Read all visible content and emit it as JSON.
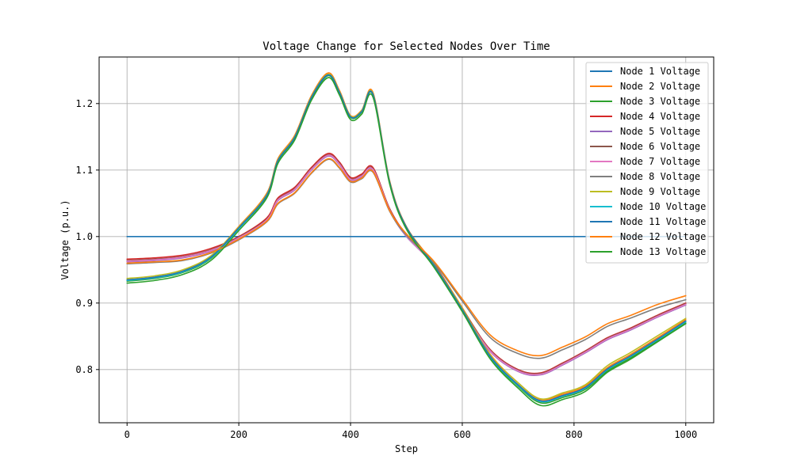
{
  "chart_data": {
    "type": "line",
    "title": "Voltage Change for Selected Nodes Over Time",
    "xlabel": "Step",
    "ylabel": "Voltage (p.u.)",
    "xlim": [
      -50,
      1050
    ],
    "ylim": [
      0.72,
      1.27
    ],
    "xticks": [
      0,
      200,
      400,
      600,
      800,
      1000
    ],
    "yticks": [
      0.8,
      0.9,
      1.0,
      1.1,
      1.2
    ],
    "grid": true,
    "legend_position": "upper right",
    "x": [
      0,
      50,
      100,
      150,
      200,
      250,
      270,
      300,
      330,
      360,
      380,
      400,
      420,
      440,
      470,
      500,
      550,
      600,
      650,
      700,
      740,
      780,
      820,
      860,
      900,
      950,
      1000
    ],
    "series": [
      {
        "name": "Node 1 Voltage",
        "color": "#1f77b4",
        "values": [
          1.0,
          1.0,
          1.0,
          1.0,
          1.0,
          1.0,
          1.0,
          1.0,
          1.0,
          1.0,
          1.0,
          1.0,
          1.0,
          1.0,
          1.0,
          1.0,
          1.0,
          1.0,
          1.0,
          1.0,
          1.0,
          1.0,
          1.0,
          1.0,
          1.0,
          1.0,
          1.0
        ]
      },
      {
        "name": "Node 2 Voltage",
        "color": "#ff7f0e",
        "values": [
          0.935,
          0.939,
          0.948,
          0.97,
          1.015,
          1.065,
          1.117,
          1.152,
          1.212,
          1.246,
          1.22,
          1.182,
          1.19,
          1.217,
          1.084,
          1.015,
          0.958,
          0.893,
          0.823,
          0.78,
          0.755,
          0.763,
          0.775,
          0.803,
          0.822,
          0.848,
          0.875
        ]
      },
      {
        "name": "Node 3 Voltage",
        "color": "#2ca02c",
        "values": [
          0.933,
          0.937,
          0.946,
          0.967,
          1.012,
          1.061,
          1.113,
          1.148,
          1.208,
          1.242,
          1.216,
          1.179,
          1.187,
          1.213,
          1.081,
          1.013,
          0.955,
          0.889,
          0.818,
          0.775,
          0.75,
          0.758,
          0.77,
          0.798,
          0.817,
          0.843,
          0.87
        ]
      },
      {
        "name": "Node 4 Voltage",
        "color": "#d62728",
        "values": [
          0.966,
          0.968,
          0.972,
          0.982,
          1.0,
          1.028,
          1.058,
          1.074,
          1.104,
          1.125,
          1.112,
          1.089,
          1.094,
          1.104,
          1.042,
          1.003,
          0.958,
          0.892,
          0.83,
          0.8,
          0.795,
          0.81,
          0.828,
          0.848,
          0.862,
          0.882,
          0.9
        ]
      },
      {
        "name": "Node 5 Voltage",
        "color": "#9467bd",
        "values": [
          0.962,
          0.964,
          0.968,
          0.978,
          0.997,
          1.024,
          1.054,
          1.07,
          1.1,
          1.121,
          1.108,
          1.085,
          1.09,
          1.1,
          1.039,
          1.0,
          0.956,
          0.889,
          0.827,
          0.797,
          0.792,
          0.807,
          0.825,
          0.845,
          0.859,
          0.879,
          0.897
        ]
      },
      {
        "name": "Node 6 Voltage",
        "color": "#8c564b",
        "values": [
          0.964,
          0.966,
          0.97,
          0.98,
          0.999,
          1.026,
          1.056,
          1.072,
          1.102,
          1.123,
          1.11,
          1.087,
          1.092,
          1.102,
          1.041,
          1.002,
          0.957,
          0.891,
          0.829,
          0.799,
          0.794,
          0.809,
          0.827,
          0.847,
          0.861,
          0.881,
          0.899
        ]
      },
      {
        "name": "Node 7 Voltage",
        "color": "#e377c2",
        "values": [
          0.963,
          0.965,
          0.969,
          0.979,
          0.998,
          1.025,
          1.055,
          1.071,
          1.101,
          1.122,
          1.109,
          1.086,
          1.091,
          1.101,
          1.04,
          1.001,
          0.956,
          0.89,
          0.828,
          0.798,
          0.793,
          0.808,
          0.826,
          0.846,
          0.86,
          0.88,
          0.898
        ]
      },
      {
        "name": "Node 8 Voltage",
        "color": "#7f7f7f",
        "values": [
          0.959,
          0.961,
          0.964,
          0.975,
          0.995,
          1.022,
          1.049,
          1.065,
          1.095,
          1.116,
          1.103,
          1.082,
          1.087,
          1.097,
          1.038,
          1.002,
          0.96,
          0.903,
          0.848,
          0.824,
          0.817,
          0.83,
          0.845,
          0.865,
          0.877,
          0.893,
          0.905
        ]
      },
      {
        "name": "Node 9 Voltage",
        "color": "#bcbd22",
        "values": [
          0.937,
          0.941,
          0.95,
          0.971,
          1.014,
          1.063,
          1.115,
          1.15,
          1.21,
          1.244,
          1.218,
          1.181,
          1.189,
          1.215,
          1.082,
          1.014,
          0.957,
          0.892,
          0.822,
          0.78,
          0.756,
          0.765,
          0.777,
          0.806,
          0.825,
          0.851,
          0.877
        ]
      },
      {
        "name": "Node 10 Voltage",
        "color": "#17becf",
        "values": [
          0.934,
          0.938,
          0.947,
          0.968,
          1.012,
          1.062,
          1.114,
          1.149,
          1.209,
          1.243,
          1.217,
          1.18,
          1.188,
          1.214,
          1.081,
          1.013,
          0.955,
          0.889,
          0.819,
          0.776,
          0.752,
          0.76,
          0.772,
          0.8,
          0.819,
          0.845,
          0.872
        ]
      },
      {
        "name": "Node 11 Voltage",
        "color": "#1f77b4",
        "values": [
          0.935,
          0.939,
          0.948,
          0.969,
          1.013,
          1.062,
          1.114,
          1.149,
          1.209,
          1.243,
          1.217,
          1.18,
          1.188,
          1.214,
          1.082,
          1.014,
          0.956,
          0.89,
          0.82,
          0.777,
          0.753,
          0.761,
          0.773,
          0.801,
          0.82,
          0.846,
          0.873
        ]
      },
      {
        "name": "Node 12 Voltage",
        "color": "#ff7f0e",
        "values": [
          0.96,
          0.962,
          0.965,
          0.976,
          0.996,
          1.023,
          1.05,
          1.066,
          1.096,
          1.117,
          1.104,
          1.083,
          1.088,
          1.098,
          1.039,
          1.004,
          0.962,
          0.906,
          0.852,
          0.828,
          0.821,
          0.834,
          0.849,
          0.869,
          0.881,
          0.898,
          0.911
        ]
      },
      {
        "name": "Node 13 Voltage",
        "color": "#2ca02c",
        "values": [
          0.93,
          0.934,
          0.943,
          0.964,
          1.009,
          1.058,
          1.11,
          1.145,
          1.205,
          1.239,
          1.213,
          1.176,
          1.184,
          1.21,
          1.079,
          1.011,
          0.953,
          0.887,
          0.816,
          0.772,
          0.746,
          0.755,
          0.767,
          0.796,
          0.815,
          0.842,
          0.869
        ]
      }
    ]
  }
}
